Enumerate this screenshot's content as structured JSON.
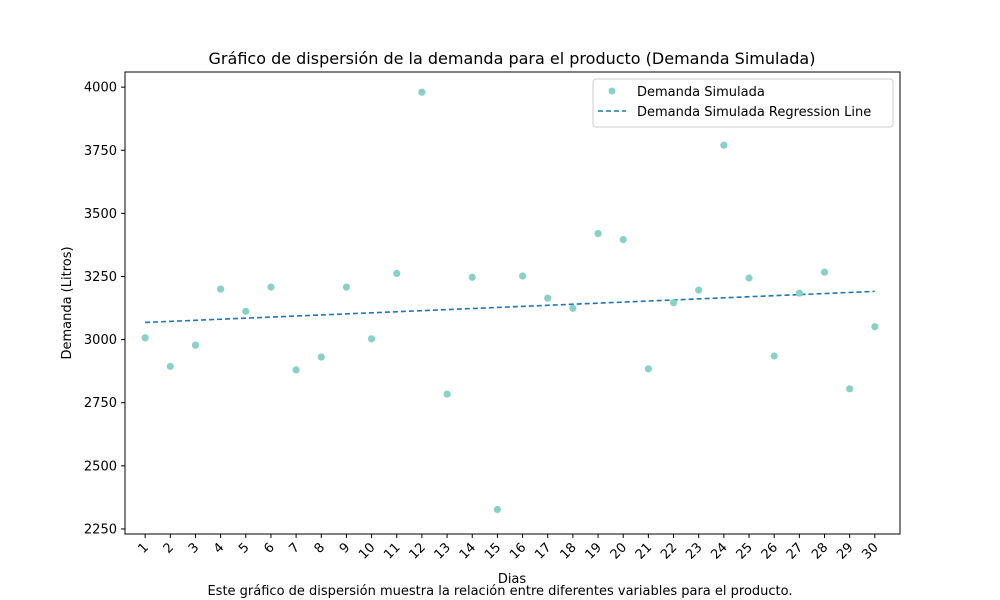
{
  "chart_data": {
    "type": "scatter",
    "title": "Gráfico de dispersión de la demanda para el producto (Demanda Simulada)",
    "xlabel": "Dias",
    "ylabel": "Demanda (Litros)",
    "x": [
      1,
      2,
      3,
      4,
      5,
      6,
      7,
      8,
      9,
      10,
      11,
      12,
      13,
      14,
      15,
      16,
      17,
      18,
      19,
      20,
      21,
      22,
      23,
      24,
      25,
      26,
      27,
      28,
      29,
      30
    ],
    "x_tick_labels": [
      "1",
      "2",
      "3",
      "4",
      "5",
      "6",
      "7",
      "8",
      "9",
      "10",
      "11",
      "12",
      "13",
      "14",
      "15",
      "16",
      "17",
      "18",
      "19",
      "20",
      "21",
      "22",
      "23",
      "24",
      "25",
      "26",
      "27",
      "28",
      "29",
      "30"
    ],
    "ylim": [
      2230,
      4060
    ],
    "y_ticks": [
      2250,
      2500,
      2750,
      3000,
      3250,
      3500,
      3750,
      4000
    ],
    "grid": false,
    "legend_position": "top-right",
    "series": [
      {
        "name": "Demanda Simulada",
        "kind": "scatter",
        "color": "#88d1c6",
        "values": [
          3007,
          2894,
          2978,
          3200,
          3112,
          3208,
          2880,
          2931,
          3208,
          3003,
          3262,
          3980,
          2784,
          3247,
          2327,
          3252,
          3164,
          3124,
          3420,
          3396,
          2884,
          3146,
          3196,
          3770,
          3244,
          2935,
          3184,
          3267,
          2805,
          3051
        ]
      },
      {
        "name": "Demanda Simulada Regression Line",
        "kind": "line",
        "style": "dashed",
        "color": "#1f77b4",
        "x_range": [
          1,
          30
        ],
        "y_range": [
          3068,
          3191
        ]
      }
    ],
    "caption": "Este gráfico de dispersión muestra la relación entre diferentes variables para el producto."
  }
}
